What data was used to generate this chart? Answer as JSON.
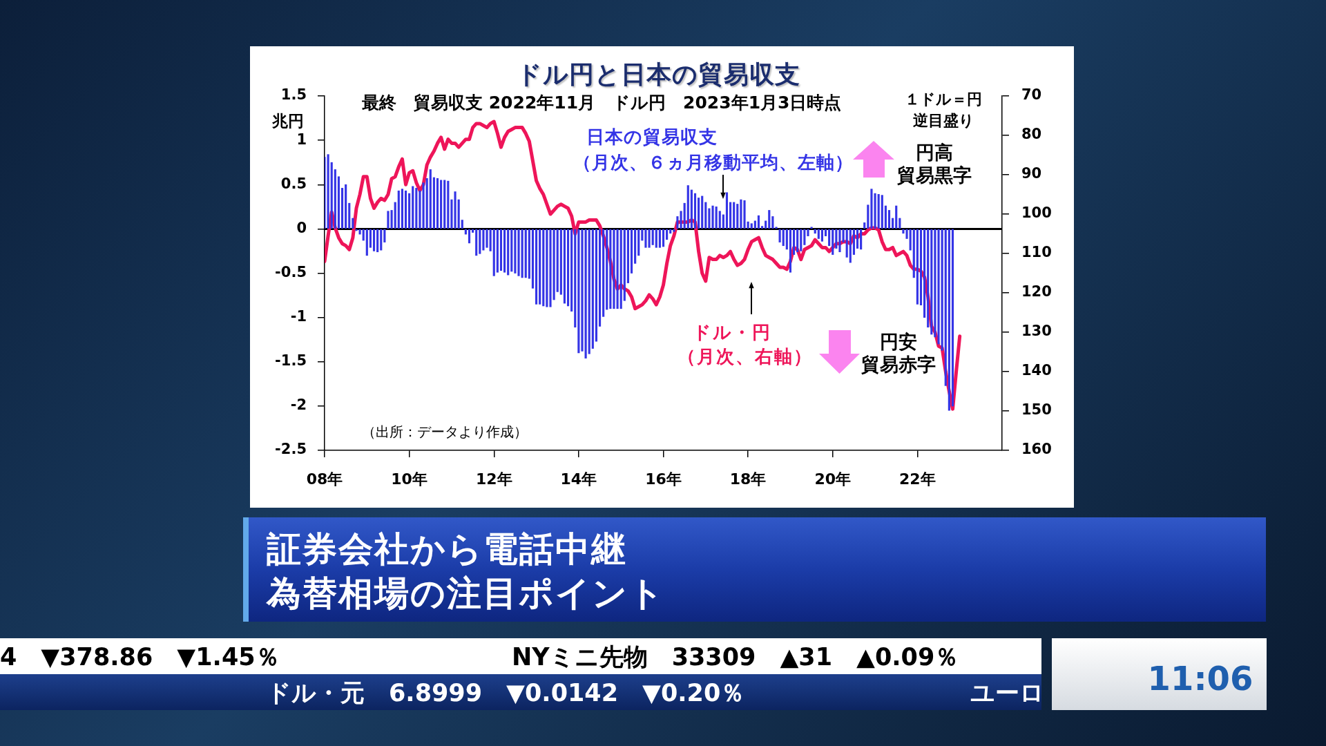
{
  "chart_data": {
    "type": "bar",
    "title": "ドル円と日本の貿易収支",
    "subtitle": "最終　貿易収支 2022年11月　ドル円　2023年1月3日時点",
    "ylabel": "兆円",
    "y2label": "１ドル＝円逆目盛り",
    "x": [
      "2008-01",
      "2008-02",
      "2008-03",
      "2008-04",
      "2008-05",
      "2008-06",
      "2008-07",
      "2008-08",
      "2008-09",
      "2008-10",
      "2008-11",
      "2008-12",
      "2009-01",
      "2009-02",
      "2009-03",
      "2009-04",
      "2009-05",
      "2009-06",
      "2009-07",
      "2009-08",
      "2009-09",
      "2009-10",
      "2009-11",
      "2009-12",
      "2010-01",
      "2010-02",
      "2010-03",
      "2010-04",
      "2010-05",
      "2010-06",
      "2010-07",
      "2010-08",
      "2010-09",
      "2010-10",
      "2010-11",
      "2010-12",
      "2011-01",
      "2011-02",
      "2011-03",
      "2011-04",
      "2011-05",
      "2011-06",
      "2011-07",
      "2011-08",
      "2011-09",
      "2011-10",
      "2011-11",
      "2011-12",
      "2012-01",
      "2012-02",
      "2012-03",
      "2012-04",
      "2012-05",
      "2012-06",
      "2012-07",
      "2012-08",
      "2012-09",
      "2012-10",
      "2012-11",
      "2012-12",
      "2013-01",
      "2013-02",
      "2013-03",
      "2013-04",
      "2013-05",
      "2013-06",
      "2013-07",
      "2013-08",
      "2013-09",
      "2013-10",
      "2013-11",
      "2013-12",
      "2014-01",
      "2014-02",
      "2014-03",
      "2014-04",
      "2014-05",
      "2014-06",
      "2014-07",
      "2014-08",
      "2014-09",
      "2014-10",
      "2014-11",
      "2014-12",
      "2015-01",
      "2015-02",
      "2015-03",
      "2015-04",
      "2015-05",
      "2015-06",
      "2015-07",
      "2015-08",
      "2015-09",
      "2015-10",
      "2015-11",
      "2015-12",
      "2016-01",
      "2016-02",
      "2016-03",
      "2016-04",
      "2016-05",
      "2016-06",
      "2016-07",
      "2016-08",
      "2016-09",
      "2016-10",
      "2016-11",
      "2016-12",
      "2017-01",
      "2017-02",
      "2017-03",
      "2017-04",
      "2017-05",
      "2017-06",
      "2017-07",
      "2017-08",
      "2017-09",
      "2017-10",
      "2017-11",
      "2017-12",
      "2018-01",
      "2018-02",
      "2018-03",
      "2018-04",
      "2018-05",
      "2018-06",
      "2018-07",
      "2018-08",
      "2018-09",
      "2018-10",
      "2018-11",
      "2018-12",
      "2019-01",
      "2019-02",
      "2019-03",
      "2019-04",
      "2019-05",
      "2019-06",
      "2019-07",
      "2019-08",
      "2019-09",
      "2019-10",
      "2019-11",
      "2019-12",
      "2020-01",
      "2020-02",
      "2020-03",
      "2020-04",
      "2020-05",
      "2020-06",
      "2020-07",
      "2020-08",
      "2020-09",
      "2020-10",
      "2020-11",
      "2020-12",
      "2021-01",
      "2021-02",
      "2021-03",
      "2021-04",
      "2021-05",
      "2021-06",
      "2021-07",
      "2021-08",
      "2021-09",
      "2021-10",
      "2021-11",
      "2021-12",
      "2022-01",
      "2022-02",
      "2022-03",
      "2022-04",
      "2022-05",
      "2022-06",
      "2022-07",
      "2022-08",
      "2022-09",
      "2022-10",
      "2022-11",
      "2022-12",
      "2023-01"
    ],
    "series": [
      {
        "name": "日本の貿易収支（月次、６ヵ月移動平均、左軸）",
        "color": "#3434e6",
        "values": [
          0.81,
          0.84,
          0.75,
          0.67,
          0.59,
          0.46,
          0.5,
          0.29,
          0.12,
          -0.02,
          -0.06,
          -0.13,
          -0.3,
          -0.21,
          -0.25,
          -0.26,
          -0.24,
          -0.15,
          0.2,
          0.21,
          0.3,
          0.43,
          0.45,
          0.43,
          0.4,
          0.48,
          0.46,
          0.43,
          0.52,
          0.57,
          0.67,
          0.58,
          0.57,
          0.55,
          0.55,
          0.54,
          0.33,
          0.42,
          0.33,
          0.1,
          -0.06,
          -0.16,
          -0.04,
          -0.3,
          -0.28,
          -0.24,
          -0.21,
          -0.25,
          -0.53,
          -0.49,
          -0.47,
          -0.49,
          -0.52,
          -0.48,
          -0.5,
          -0.53,
          -0.55,
          -0.55,
          -0.56,
          -0.67,
          -0.85,
          -0.85,
          -0.87,
          -0.88,
          -0.88,
          -0.8,
          -0.71,
          -0.74,
          -0.84,
          -0.87,
          -0.93,
          -1.11,
          -1.4,
          -1.38,
          -1.46,
          -1.41,
          -1.35,
          -1.27,
          -1.1,
          -0.99,
          -0.91,
          -0.9,
          -0.9,
          -0.9,
          -0.9,
          -0.81,
          -0.61,
          -0.5,
          -0.39,
          -0.3,
          -0.13,
          -0.21,
          -0.21,
          -0.18,
          -0.21,
          -0.21,
          -0.2,
          -0.12,
          -0.05,
          -0.03,
          0.14,
          0.2,
          0.29,
          0.49,
          0.44,
          0.4,
          0.35,
          0.37,
          0.3,
          0.23,
          0.26,
          0.25,
          0.2,
          0.16,
          0.41,
          0.3,
          0.3,
          0.28,
          0.33,
          0.32,
          0.08,
          0.06,
          0.09,
          0.15,
          0.03,
          0.09,
          0.21,
          0.14,
          0.02,
          -0.15,
          -0.19,
          -0.23,
          -0.49,
          -0.29,
          -0.26,
          -0.25,
          -0.18,
          -0.08,
          0.02,
          -0.05,
          -0.11,
          -0.14,
          -0.08,
          -0.19,
          -0.29,
          -0.22,
          -0.26,
          -0.15,
          -0.32,
          -0.38,
          -0.29,
          -0.22,
          -0.23,
          0.07,
          0.27,
          0.45,
          0.4,
          0.39,
          0.38,
          0.26,
          0.21,
          0.12,
          0.26,
          0.12,
          -0.05,
          -0.11,
          -0.24,
          -0.55,
          -0.85,
          -0.86,
          -1.0,
          -1.11,
          -1.19,
          -1.22,
          -1.3,
          -1.37,
          -1.77,
          -2.05,
          -2.0,
          null,
          null
        ]
      },
      {
        "type": "line",
        "axis": "y2",
        "name": "ドル・円（月次、右軸）",
        "color": "#ee1559",
        "values": [
          112,
          105.5,
          99.5,
          103.5,
          106,
          107.5,
          108,
          109,
          106,
          98.5,
          95,
          90.5,
          90.5,
          96,
          98.5,
          97,
          96,
          96.5,
          95,
          91,
          90.5,
          88,
          86,
          92.5,
          89.5,
          89,
          92,
          94,
          92.5,
          87.5,
          85.5,
          84,
          82,
          80.5,
          83.5,
          81,
          82,
          82,
          83,
          82,
          81,
          81,
          78,
          77,
          77,
          77.5,
          78,
          77,
          76.5,
          79.5,
          83,
          80.5,
          79,
          78.5,
          78,
          78,
          78,
          79.5,
          81.5,
          86.5,
          91.5,
          93.5,
          95,
          97.5,
          100,
          99,
          98,
          97.5,
          98,
          98.5,
          100.5,
          105,
          102,
          102,
          102,
          101.5,
          101.5,
          101.5,
          103,
          105.5,
          108.5,
          112,
          116.5,
          119,
          118,
          119,
          119.5,
          121,
          124,
          123.5,
          123,
          122,
          120.5,
          121.5,
          123,
          121,
          118,
          112.5,
          108,
          105.5,
          102,
          102,
          102,
          102,
          101.5,
          102,
          109.5,
          115,
          117,
          111,
          111.5,
          111.5,
          110.5,
          111,
          110.5,
          109.5,
          111.5,
          113,
          112.5,
          111.5,
          109,
          107,
          106.5,
          106,
          108.5,
          110.5,
          111,
          111.5,
          112.5,
          113.5,
          113.5,
          114,
          112,
          108.5,
          109,
          111.5,
          109,
          108.5,
          108,
          106.5,
          107.5,
          108.5,
          108.5,
          109.5,
          108.5,
          107.5,
          107.5,
          107,
          107,
          107.5,
          105.5,
          106,
          105,
          105,
          104,
          103.5,
          103.5,
          104,
          107,
          109,
          109,
          108.5,
          110.5,
          110,
          109.5,
          110.5,
          113,
          114,
          114,
          114.5,
          116,
          121,
          128.5,
          130,
          133.5,
          134,
          140,
          145,
          149.5,
          140,
          131
        ]
      }
    ],
    "xlim": [
      "2008-01",
      "2024-01"
    ],
    "xticks": [
      {
        "value": "2008",
        "label": "08年"
      },
      {
        "value": "2010",
        "label": "10年"
      },
      {
        "value": "2012",
        "label": "12年"
      },
      {
        "value": "2014",
        "label": "14年"
      },
      {
        "value": "2016",
        "label": "16年"
      },
      {
        "value": "2018",
        "label": "18年"
      },
      {
        "value": "2020",
        "label": "20年"
      },
      {
        "value": "2022",
        "label": "22年"
      }
    ],
    "ylim": [
      -2.5,
      1.5
    ],
    "yticks": [
      1.5,
      1,
      0.5,
      0,
      -0.5,
      -1,
      -1.5,
      -2,
      -2.5
    ],
    "y2lim": [
      160,
      70
    ],
    "y2ticks": [
      70,
      80,
      90,
      100,
      110,
      120,
      130,
      140,
      150,
      160
    ],
    "ref_lines": [
      {
        "axis": "y",
        "value": 0,
        "color": "#000000"
      }
    ],
    "grid": false,
    "legend": false,
    "marker": "none",
    "annotations": [
      "円高",
      "貿易黒字",
      "円安",
      "貿易赤字",
      "（出所：データより作成）",
      "証券会社から電話中継",
      "為替相場の注目ポイント",
      "4　▼378.86　▼1.45％",
      "NYミニ先物　33309　▲31　▲0.09％",
      "ドル・元　6.8999　▼0.0142　▼0.20％",
      "ユーロ",
      "11:06"
    ]
  }
}
